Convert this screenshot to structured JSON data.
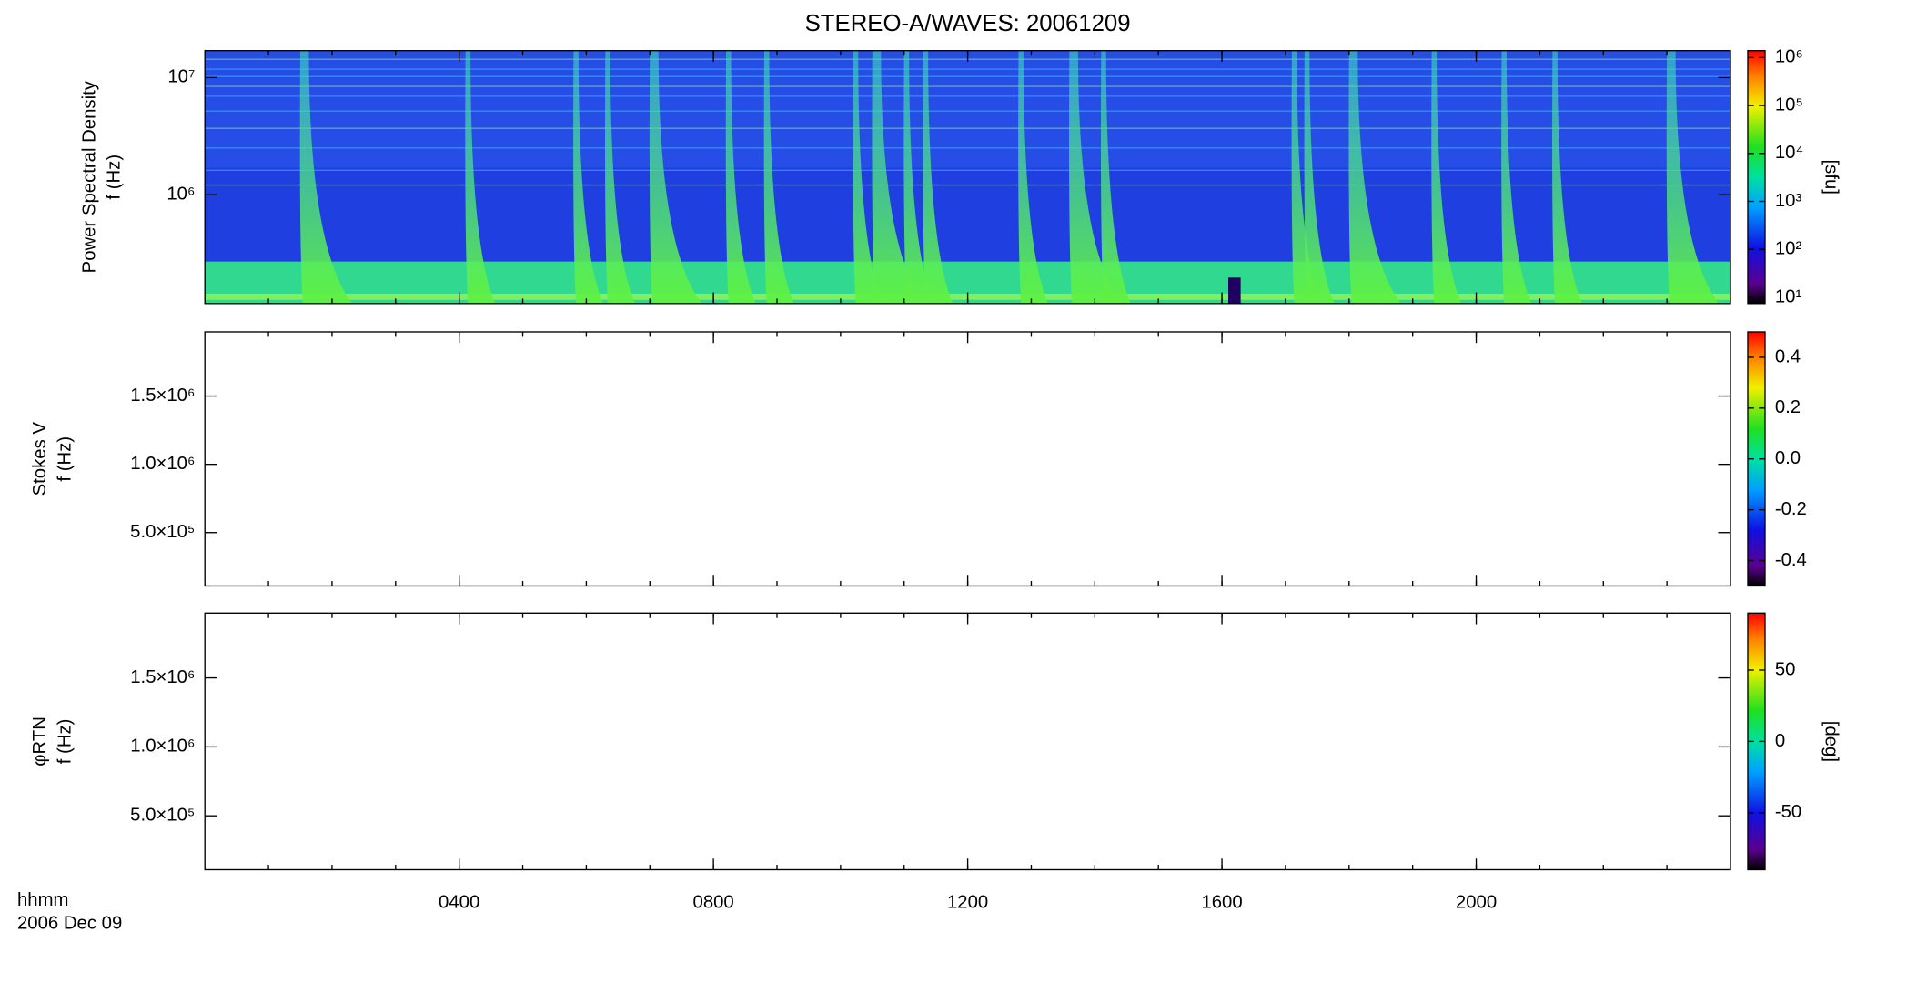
{
  "chart_data": [
    {
      "type": "heatmap",
      "title": "STEREO-A/WAVES: 20061209",
      "ylabel": [
        "Power Spectral Density",
        "f (Hz)"
      ],
      "log_y": true,
      "ylim": [
        118000,
        17000000
      ],
      "yticks": [
        {
          "value": 1000000,
          "label": "10⁶"
        },
        {
          "value": 10000000,
          "label": "10⁷"
        }
      ],
      "colorbar": {
        "label": "[sfu]",
        "log": true,
        "lim": [
          7.4,
          1400000
        ],
        "ticks": [
          {
            "value": 10,
            "label": "10¹"
          },
          {
            "value": 100,
            "label": "10²"
          },
          {
            "value": 1000,
            "label": "10³"
          },
          {
            "value": 10000,
            "label": "10⁴"
          },
          {
            "value": 100000,
            "label": "10⁵"
          },
          {
            "value": 1000000,
            "label": "10⁶"
          }
        ]
      }
    },
    {
      "type": "heatmap",
      "ylabel": [
        "Stokes V",
        "f (Hz)"
      ],
      "log_y": false,
      "ylim": [
        109000,
        1970000
      ],
      "yticks": [
        {
          "value": 500000,
          "label": "5.0×10⁵"
        },
        {
          "value": 1000000,
          "label": "1.0×10⁶"
        },
        {
          "value": 1500000,
          "label": "1.5×10⁶"
        }
      ],
      "colorbar": {
        "log": false,
        "lim": [
          -0.5,
          0.5
        ],
        "ticks": [
          -0.4,
          -0.2,
          {
            "value": 0,
            "label": "0.0"
          },
          0.2,
          0.4
        ]
      }
    },
    {
      "type": "heatmap",
      "ylabel": [
        "φRTN",
        "f (Hz)"
      ],
      "log_y": false,
      "ylim": [
        109000,
        1970000
      ],
      "yticks": [
        {
          "value": 500000,
          "label": "5.0×10⁵"
        },
        {
          "value": 1000000,
          "label": "1.0×10⁶"
        },
        {
          "value": 1500000,
          "label": "1.5×10⁶"
        }
      ],
      "colorbar": {
        "label": "[deg]",
        "log": false,
        "lim": [
          -90,
          90
        ],
        "ticks": [
          -50,
          0,
          50
        ]
      },
      "xlabel": [
        "hhmm",
        "2006 Dec 09"
      ],
      "xlim": [
        0,
        24
      ],
      "xticks": [
        {
          "value": 4,
          "label": "0400"
        },
        {
          "value": 8,
          "label": "0800"
        },
        {
          "value": 12,
          "label": "1200"
        },
        {
          "value": 16,
          "label": "1600"
        },
        {
          "value": 20,
          "label": "2000"
        }
      ]
    }
  ]
}
